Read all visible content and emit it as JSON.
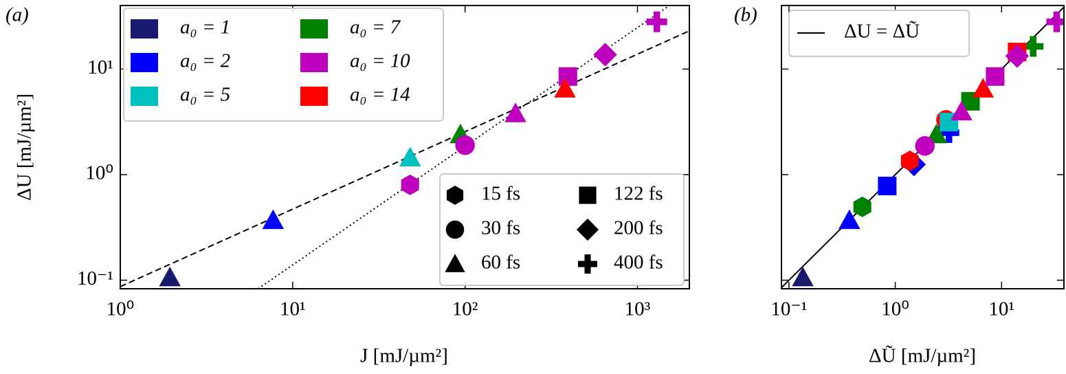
{
  "chart_data": [
    {
      "type": "scatter",
      "panel_label": "(a)",
      "xlabel": "J  [mJ/µm²]",
      "ylabel": "ΔU  [mJ/µm²]",
      "xlog": true,
      "ylog": true,
      "xlim": [
        1,
        2000
      ],
      "ylim": [
        0.083,
        40
      ],
      "xticks": [
        {
          "value": 1,
          "label": "10⁰"
        },
        {
          "value": 10,
          "label": "10¹"
        },
        {
          "value": 100,
          "label": "10²"
        },
        {
          "value": 1000,
          "label": "10³"
        }
      ],
      "yticks": [
        {
          "value": 0.1,
          "label": "10⁻¹"
        },
        {
          "value": 1,
          "label": "10⁰"
        },
        {
          "value": 10,
          "label": "10¹"
        }
      ],
      "ytick_labels": true,
      "legend_loc": "upper left",
      "legend_columns": 2,
      "series": [
        {
          "name": "a₀ = 1",
          "color": "#191970",
          "x": [
            1.94
          ],
          "y": [
            0.106
          ],
          "markers": [
            "triangle"
          ]
        },
        {
          "name": "a₀ = 2",
          "color": "#0000ff",
          "x": [
            7.7
          ],
          "y": [
            0.37
          ],
          "markers": [
            "triangle"
          ]
        },
        {
          "name": "a₀ = 5",
          "color": "#00bfbf",
          "x": [
            48
          ],
          "y": [
            1.45
          ],
          "markers": [
            "triangle"
          ]
        },
        {
          "name": "a₀ = 7",
          "color": "#008000",
          "x": [
            94
          ],
          "y": [
            2.4
          ],
          "markers": [
            "triangle"
          ]
        },
        {
          "name": "a₀ = 10",
          "color": "#bf00bf",
          "x": [
            48,
            100,
            196,
            395,
            650,
            1295
          ],
          "y": [
            0.8,
            1.9,
            3.8,
            8.5,
            13.7,
            28
          ],
          "markers": [
            "hexagon",
            "circle",
            "triangle",
            "square",
            "diamond",
            "plus"
          ]
        },
        {
          "name": "a₀ = 14",
          "color": "#ff0000",
          "x": [
            380
          ],
          "y": [
            6.5
          ],
          "markers": [
            "triangle"
          ]
        }
      ],
      "marker_legend": {
        "loc": "lower right",
        "columns": 2,
        "entries": [
          {
            "name": "15 fs",
            "marker": "hexagon"
          },
          {
            "name": "30 fs",
            "marker": "circle"
          },
          {
            "name": "60 fs",
            "marker": "triangle"
          },
          {
            "name": "122 fs",
            "marker": "square"
          },
          {
            "name": "200 fs",
            "marker": "diamond"
          },
          {
            "name": "400 fs",
            "marker": "plus"
          }
        ]
      },
      "lines": [
        {
          "x": [
            1,
            2000
          ],
          "y": [
            0.087,
            23
          ],
          "style": "dashed"
        },
        {
          "x": [
            6.3,
            1500
          ],
          "y": [
            0.083,
            39
          ],
          "style": "dotted"
        }
      ]
    },
    {
      "type": "scatter",
      "panel_label": "(b)",
      "xlabel": "ΔŨ  [mJ/µm²]",
      "xlog": true,
      "ylog": true,
      "xlim": [
        0.085,
        38.6
      ],
      "ylim": [
        0.083,
        40
      ],
      "xticks": [
        {
          "value": 0.1,
          "label": "10⁻¹"
        },
        {
          "value": 1,
          "label": "10⁰"
        },
        {
          "value": 10,
          "label": "10¹"
        }
      ],
      "yticks": [
        0.1,
        1,
        10
      ],
      "ytick_labels": false,
      "legend_loc": "upper left",
      "series": [
        {
          "color": "#191970",
          "x": [
            0.135
          ],
          "y": [
            0.106
          ],
          "markers": [
            "triangle"
          ]
        },
        {
          "color": "#0000ff",
          "x": [
            0.37,
            0.84,
            1.5,
            3.2,
            3.1
          ],
          "y": [
            0.37,
            0.78,
            1.25,
            2.5,
            2.85
          ],
          "markers": [
            "triangle",
            "square",
            "diamond",
            "plus",
            "square"
          ]
        },
        {
          "color": "#008000",
          "x": [
            0.49,
            2.44,
            5.1,
            19.8
          ],
          "y": [
            0.495,
            2.4,
            4.95,
            16.4
          ],
          "markers": [
            "hexagon",
            "triangle",
            "square",
            "plus"
          ]
        },
        {
          "color": "#ff0000",
          "x": [
            1.37,
            3.0,
            6.7,
            14
          ],
          "y": [
            1.35,
            3.3,
            6.5,
            14.5
          ],
          "markers": [
            "hexagon",
            "circle",
            "triangle",
            "square"
          ]
        },
        {
          "color": "#00bfbf",
          "x": [
            3.2
          ],
          "y": [
            3.15
          ],
          "markers": [
            "square"
          ]
        },
        {
          "color": "#bf00bf",
          "x": [
            1.9,
            4.2,
            8.7,
            14,
            33
          ],
          "y": [
            1.87,
            3.95,
            8.5,
            13.3,
            28
          ],
          "markers": [
            "circle",
            "triangle",
            "square",
            "diamond",
            "plus"
          ]
        }
      ],
      "lines": [
        {
          "name": "ΔU = ΔŨ",
          "x": [
            0.08,
            40
          ],
          "y": [
            0.08,
            40
          ],
          "style": "solid"
        }
      ]
    }
  ]
}
